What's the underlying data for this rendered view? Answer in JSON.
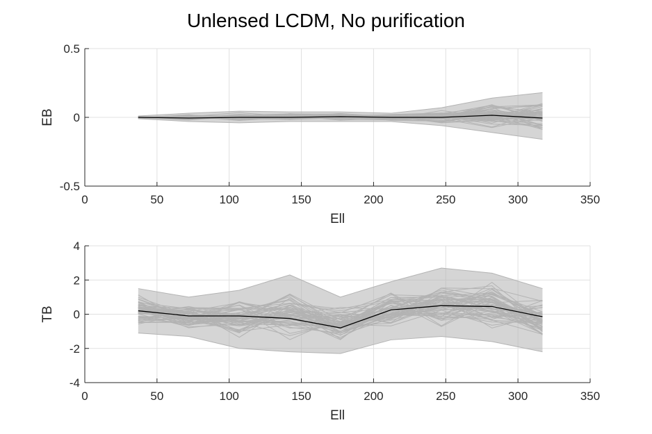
{
  "title": "Unlensed LCDM, No purification",
  "colors": {
    "band": "#b3b3b3",
    "mean": "#000000",
    "grid": "#e0e0e0",
    "axis": "#262626"
  },
  "chart_data": [
    {
      "type": "line",
      "ylabel": "EB",
      "xlabel": "Ell",
      "xlim": [
        0,
        350
      ],
      "ylim": [
        -0.5,
        0.5
      ],
      "xticks": [
        0,
        50,
        100,
        150,
        200,
        250,
        300,
        350
      ],
      "yticks": [
        -0.5,
        0,
        0.5
      ],
      "ytick_labels": [
        "-0.5",
        "0",
        "0.5"
      ],
      "grid": true,
      "x": [
        37,
        72,
        107,
        142,
        177,
        212,
        247,
        282,
        317
      ],
      "series": [
        {
          "role": "mean",
          "values": [
            0.0,
            -0.005,
            0.0,
            0.0,
            0.005,
            0.0,
            0.0,
            0.015,
            -0.005
          ]
        },
        {
          "role": "envelope",
          "upper": [
            0.01,
            0.03,
            0.045,
            0.04,
            0.04,
            0.03,
            0.07,
            0.14,
            0.18
          ],
          "lower": [
            -0.01,
            -0.03,
            -0.04,
            -0.03,
            -0.03,
            -0.03,
            -0.06,
            -0.11,
            -0.16
          ]
        }
      ]
    },
    {
      "type": "line",
      "ylabel": "TB",
      "xlabel": "Ell",
      "xlim": [
        0,
        350
      ],
      "ylim": [
        -4,
        4
      ],
      "xticks": [
        0,
        50,
        100,
        150,
        200,
        250,
        300,
        350
      ],
      "yticks": [
        -4,
        -2,
        0,
        2,
        4
      ],
      "ytick_labels": [
        "-4",
        "-2",
        "0",
        "2",
        "4"
      ],
      "grid": true,
      "x": [
        37,
        72,
        107,
        142,
        177,
        212,
        247,
        282,
        317
      ],
      "series": [
        {
          "role": "mean",
          "values": [
            0.2,
            -0.1,
            -0.1,
            -0.25,
            -0.8,
            0.25,
            0.5,
            0.45,
            -0.15
          ]
        },
        {
          "role": "envelope",
          "upper": [
            1.5,
            1.0,
            1.4,
            2.3,
            1.0,
            1.9,
            2.7,
            2.4,
            1.5
          ],
          "lower": [
            -1.1,
            -1.3,
            -2.0,
            -2.2,
            -2.3,
            -1.5,
            -1.3,
            -1.6,
            -2.2
          ]
        }
      ]
    }
  ]
}
